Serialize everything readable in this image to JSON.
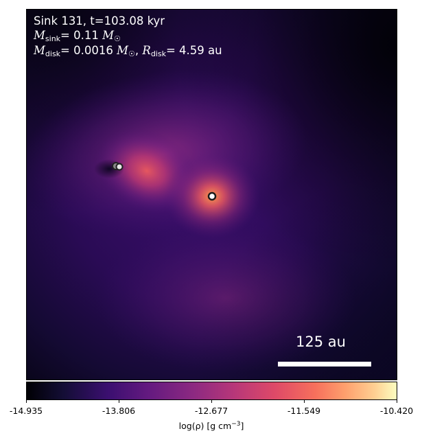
{
  "annotation": {
    "title": "Sink 131, t=103.08 kyr",
    "msink_sym": "M",
    "msink_sub": "sink",
    "msink_val": "= 0.11 ",
    "mdisk_sym": "M",
    "mdisk_sub": "disk",
    "mdisk_val": "= 0.0016 ",
    "rdisk_sym": "R",
    "rdisk_sub": "disk",
    "rdisk_val": "= 4.59 au",
    "solar_mass": "M",
    "solar_sub": "☉",
    "separator": ", "
  },
  "scalebar": {
    "label": "125 au"
  },
  "colorbar": {
    "colormap": "magma",
    "ticks": [
      "-14.935",
      "-13.806",
      "-12.677",
      "-11.549",
      "-10.420"
    ],
    "label_prefix": "log(ρ) [g cm",
    "label_exp": "−3",
    "label_suffix": "]"
  },
  "sinks": [
    {
      "name": "sink-131"
    },
    {
      "name": "companion-sink-a"
    },
    {
      "name": "companion-sink-b"
    }
  ]
}
